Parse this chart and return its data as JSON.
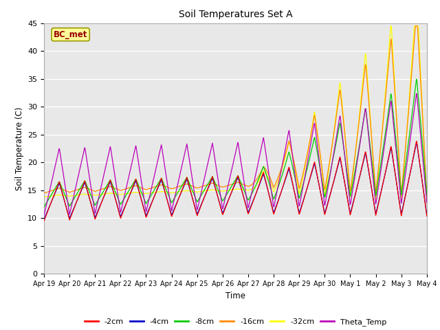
{
  "title": "Soil Temperatures Set A",
  "xlabel": "Time",
  "ylabel": "Soil Temperature (C)",
  "ylim": [
    0,
    45
  ],
  "yticks": [
    0,
    5,
    10,
    15,
    20,
    25,
    30,
    35,
    40,
    45
  ],
  "plot_bg_color": "#e8e8e8",
  "annotation_text": "BC_met",
  "annotation_bg": "#ffff99",
  "annotation_border": "#999900",
  "annotation_textcolor": "#990000",
  "series_colors": {
    "-2cm": "#ff0000",
    "-4cm": "#0000cc",
    "-8cm": "#00cc00",
    "-16cm": "#ff8800",
    "-32cm": "#ffff00",
    "Theta_Temp": "#bb00bb"
  },
  "xtick_labels": [
    "Apr 19",
    "Apr 20",
    "Apr 21",
    "Apr 22",
    "Apr 23",
    "Apr 24",
    "Apr 25",
    "Apr 26",
    "Apr 27",
    "Apr 28",
    "Apr 29",
    "Apr 30",
    "May 1",
    "May 2",
    "May 3",
    "May 4"
  ],
  "n_points": 960
}
